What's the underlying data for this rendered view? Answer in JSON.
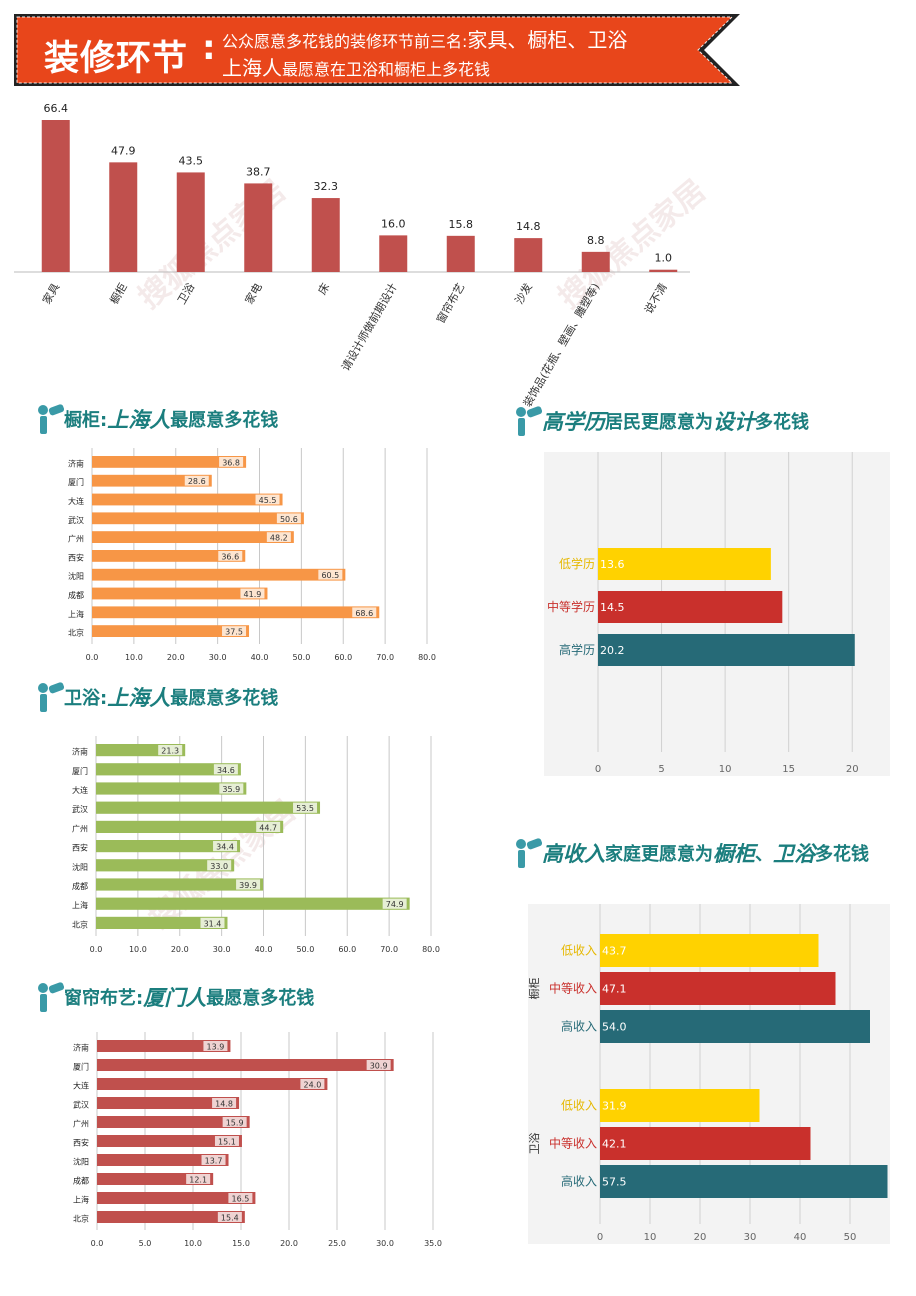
{
  "banner": {
    "main": "装修环节",
    "colon": ":",
    "line1_prefix": "公众愿意多花钱的装修环节前三名:",
    "line1_highlight": "家具、橱柜、卫浴",
    "line2_highlight": "上海人",
    "line2_suffix": "最愿意在卫浴和橱柜上多花钱"
  },
  "sections": {
    "cabinet": {
      "prefix": "橱柜:",
      "emph": "上海人",
      "suffix": "最愿意多花钱"
    },
    "bath": {
      "prefix": "卫浴:",
      "emph": "上海人",
      "suffix": "最愿意多花钱"
    },
    "curtain": {
      "prefix": "窗帘布艺:",
      "emph": "厦门人",
      "suffix": "最愿意多花钱"
    },
    "edu": {
      "emph": "高学历",
      "mid": " 居民更愿意为",
      "emph2": "设计",
      "suffix": "多花钱"
    },
    "income": {
      "emph": "高收入",
      "mid": "家庭更愿意为",
      "emph2": "橱柜",
      "sep": "、",
      "emph3": "卫浴",
      "suffix": "多花钱"
    }
  },
  "chart_data": [
    {
      "id": "main",
      "type": "bar",
      "categories": [
        "家具",
        "橱柜",
        "卫浴",
        "家电",
        "床",
        "请设计师做前期设计",
        "窗帘布艺",
        "沙发",
        "装饰品(花瓶、壁画、雕塑等)",
        "说不清"
      ],
      "values": [
        66.4,
        47.9,
        43.5,
        38.7,
        32.3,
        16.0,
        15.8,
        14.8,
        8.8,
        1.0
      ],
      "value_labels": [
        "66.4",
        "47.9",
        "43.5",
        "38.7",
        "32.3",
        "16.0",
        "15.8",
        "14.8",
        "8.8",
        "1.0"
      ],
      "ylim": [
        0,
        70
      ],
      "color": "#c0504d"
    },
    {
      "id": "cabinet",
      "type": "bar",
      "orientation": "horizontal",
      "categories": [
        "济南",
        "厦门",
        "大连",
        "武汉",
        "广州",
        "西安",
        "沈阳",
        "成都",
        "上海",
        "北京"
      ],
      "values": [
        36.8,
        28.6,
        45.5,
        50.6,
        48.2,
        36.6,
        60.5,
        41.9,
        68.6,
        37.5
      ],
      "value_labels": [
        "36.8",
        "28.6",
        "45.5",
        "50.6",
        "48.2",
        "36.6",
        "60.5",
        "41.9",
        "68.6",
        "37.5"
      ],
      "xlim": [
        0,
        80
      ],
      "ticks": [
        "0.0",
        "10.0",
        "20.0",
        "30.0",
        "40.0",
        "50.0",
        "60.0",
        "70.0",
        "80.0"
      ],
      "color": "#f79646"
    },
    {
      "id": "bath",
      "type": "bar",
      "orientation": "horizontal",
      "categories": [
        "济南",
        "厦门",
        "大连",
        "武汉",
        "广州",
        "西安",
        "沈阳",
        "成都",
        "上海",
        "北京"
      ],
      "values": [
        21.3,
        34.6,
        35.9,
        53.5,
        44.7,
        34.4,
        33.0,
        39.9,
        74.9,
        31.4
      ],
      "value_labels": [
        "21.3",
        "34.6",
        "35.9",
        "53.5",
        "44.7",
        "34.4",
        "33.0",
        "39.9",
        "74.9",
        "31.4"
      ],
      "xlim": [
        0,
        80
      ],
      "ticks": [
        "0.0",
        "10.0",
        "20.0",
        "30.0",
        "40.0",
        "50.0",
        "60.0",
        "70.0",
        "80.0"
      ],
      "color": "#9bbb59"
    },
    {
      "id": "curtain",
      "type": "bar",
      "orientation": "horizontal",
      "categories": [
        "济南",
        "厦门",
        "大连",
        "武汉",
        "广州",
        "西安",
        "沈阳",
        "成都",
        "上海",
        "北京"
      ],
      "values": [
        13.9,
        30.9,
        24.0,
        14.8,
        15.9,
        15.1,
        13.7,
        12.1,
        16.5,
        15.4
      ],
      "value_labels": [
        "13.9",
        "30.9",
        "24.0",
        "14.8",
        "15.9",
        "15.1",
        "13.7",
        "12.1",
        "16.5",
        "15.4"
      ],
      "xlim": [
        0,
        35
      ],
      "ticks": [
        "0.0",
        "5.0",
        "10.0",
        "15.0",
        "20.0",
        "25.0",
        "30.0",
        "35.0"
      ],
      "color": "#c0504d"
    },
    {
      "id": "edu",
      "type": "bar",
      "orientation": "horizontal",
      "categories": [
        "低学历",
        "中等学历",
        "高学历"
      ],
      "values": [
        13.6,
        14.5,
        20.2
      ],
      "value_labels": [
        "13.6",
        "14.5",
        "20.2"
      ],
      "colors": [
        "#ffd200",
        "#c9302c",
        "#266a77"
      ],
      "label_colors": [
        "#e6b800",
        "#c9302c",
        "#266a77"
      ],
      "xlim": [
        0,
        22.5
      ],
      "ticks": [
        "0",
        "5",
        "10",
        "15",
        "20"
      ]
    },
    {
      "id": "income",
      "type": "bar",
      "orientation": "horizontal",
      "groups": [
        {
          "name": "橱柜",
          "categories": [
            "低收入",
            "中等收入",
            "高收入"
          ],
          "values": [
            43.7,
            47.1,
            54.0
          ],
          "value_labels": [
            "43.7",
            "47.1",
            "54.0"
          ]
        },
        {
          "name": "卫浴",
          "categories": [
            "低收入",
            "中等收入",
            "高收入"
          ],
          "values": [
            31.9,
            42.1,
            57.5
          ],
          "value_labels": [
            "31.9",
            "42.1",
            "57.5"
          ]
        }
      ],
      "colors": [
        "#ffd200",
        "#c9302c",
        "#266a77"
      ],
      "label_colors": [
        "#e6b800",
        "#c9302c",
        "#266a77"
      ],
      "xlim": [
        0,
        58
      ],
      "ticks": [
        "0",
        "10",
        "20",
        "30",
        "40",
        "50"
      ]
    }
  ],
  "colors": {
    "banner": "#e8461b",
    "title_teal": "#1b7e7e",
    "icon": "#3a9aa7"
  },
  "icon": "telescope-person-icon",
  "watermarks": [
    "搜狐焦点家居",
    "HOME.FOCUS.CN",
    "零点数据",
    "www.horizonkey.com"
  ]
}
